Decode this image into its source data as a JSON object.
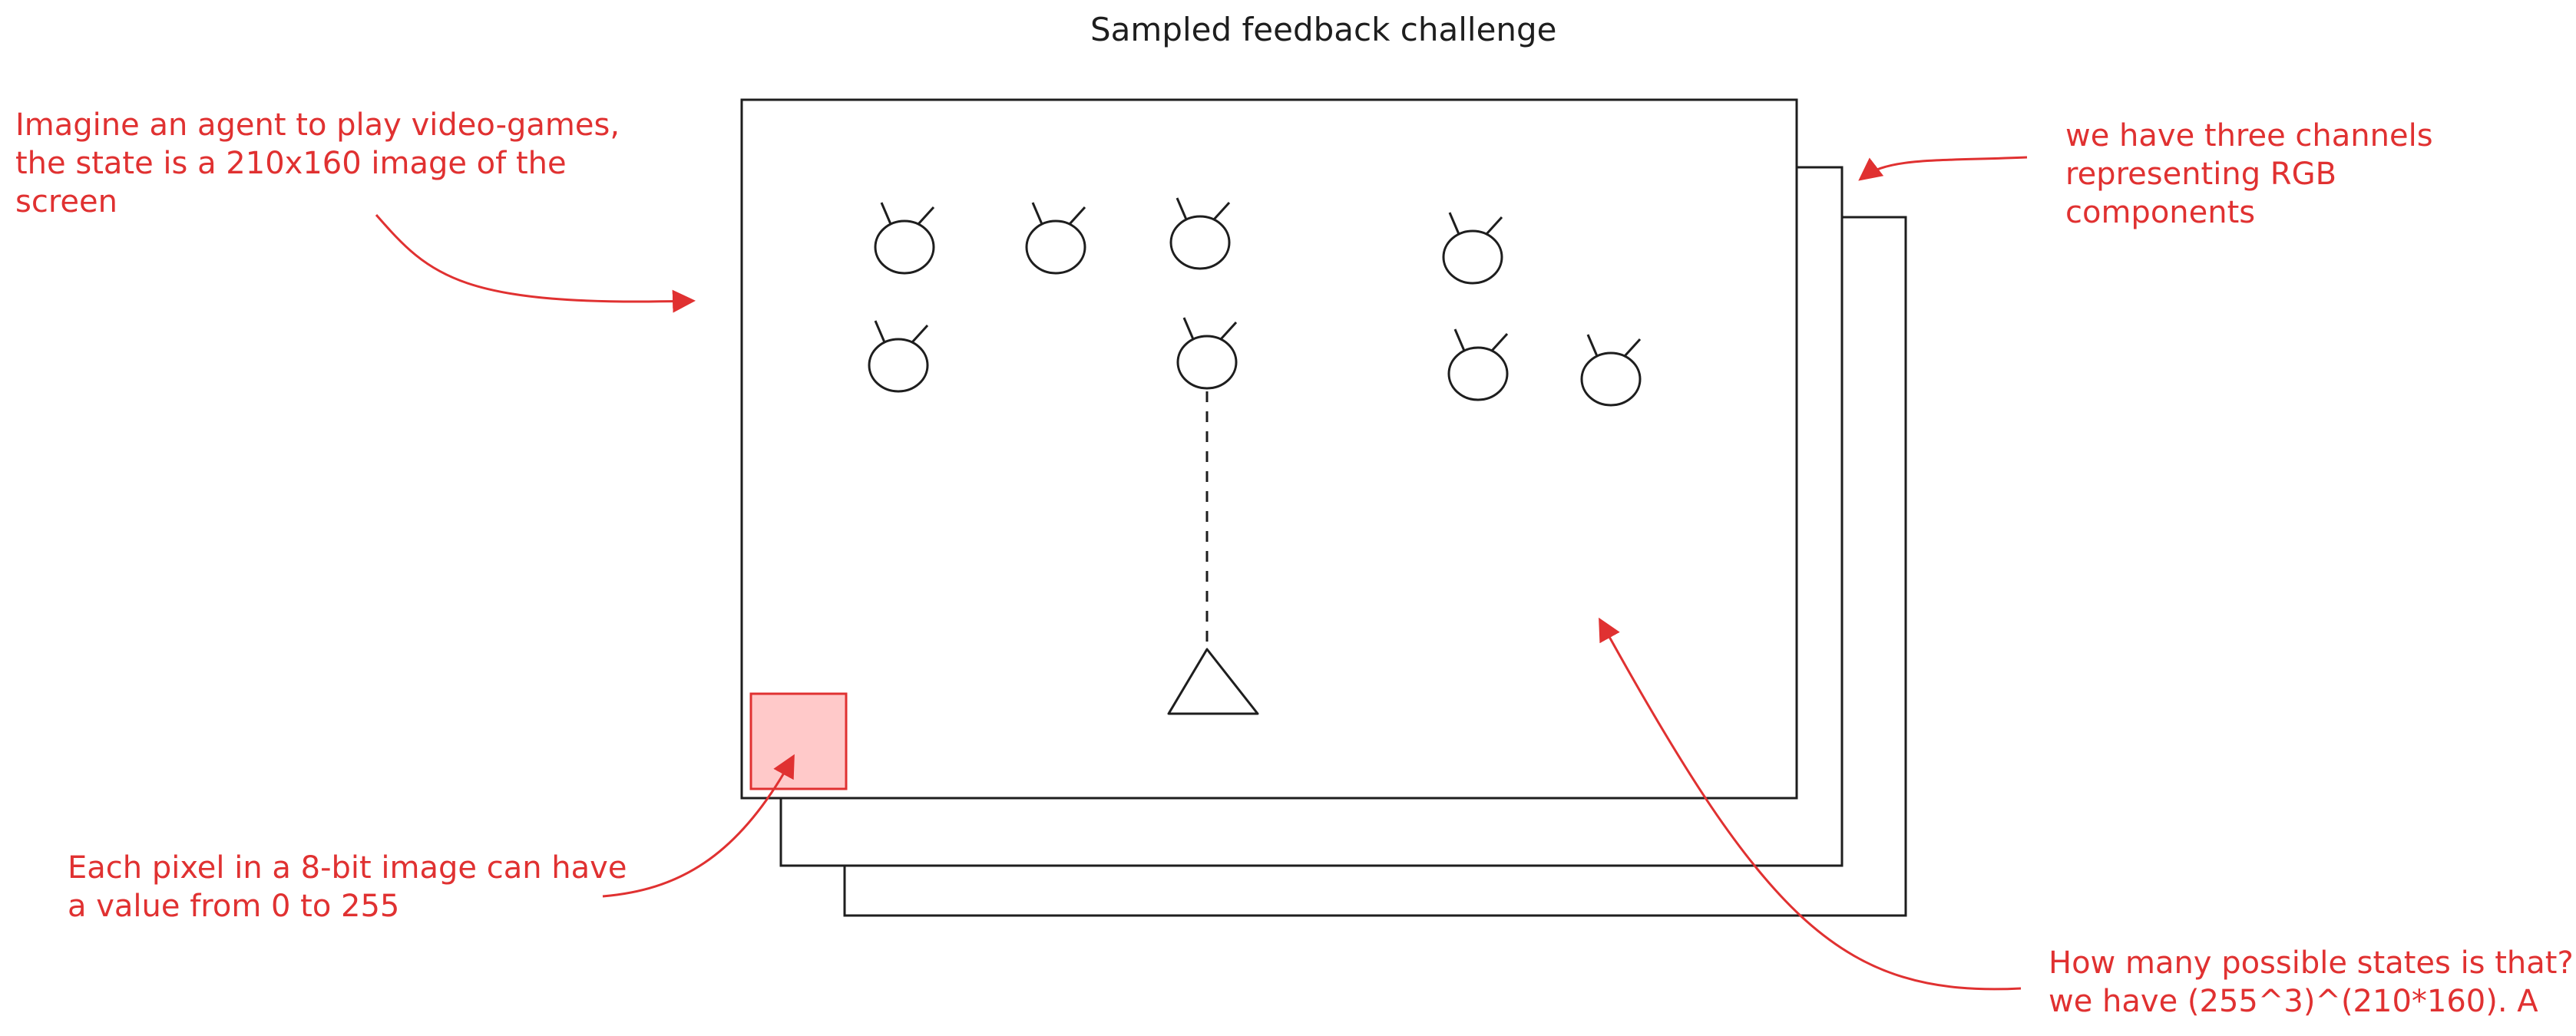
{
  "title": "Sampled feedback challenge",
  "colors": {
    "ink": "#1e1e1e",
    "accent": "#e03131",
    "pixel_fill": "#ffc9c9"
  },
  "annotations": {
    "agent": {
      "line1": "Imagine an agent to play video-games,",
      "line2": "the state is a 210x160 image of the",
      "line3": "screen"
    },
    "channels": {
      "line1": "we have three channels",
      "line2": "representing RGB",
      "line3": "components"
    },
    "pixel": {
      "line1": "Each pixel in a 8-bit image can have",
      "line2": "a value from 0 to 255"
    },
    "states": {
      "line1": "How many possible states is that?",
      "line2": "we have (255^3)^(210*160). A"
    }
  },
  "icons": {
    "enemy": "alien-invader-icon",
    "player": "player-ship-triangle-icon",
    "pixel": "pixel-square"
  }
}
